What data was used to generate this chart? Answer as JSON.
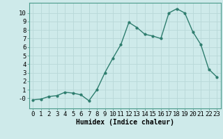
{
  "x": [
    0,
    1,
    2,
    3,
    4,
    5,
    6,
    7,
    8,
    9,
    10,
    11,
    12,
    13,
    14,
    15,
    16,
    17,
    18,
    19,
    20,
    21,
    22,
    23
  ],
  "y": [
    -0.2,
    -0.1,
    0.2,
    0.3,
    0.7,
    0.6,
    0.4,
    -0.3,
    1.0,
    3.0,
    4.7,
    6.3,
    8.9,
    8.3,
    7.5,
    7.3,
    7.0,
    10.0,
    10.5,
    10.0,
    7.8,
    6.3,
    3.4,
    2.5
  ],
  "line_color": "#2e7d6e",
  "marker": "o",
  "markersize": 2,
  "linewidth": 1.0,
  "bg_color": "#ceeaea",
  "grid_color": "#b8d8d8",
  "xlabel": "Humidex (Indice chaleur)",
  "xlim": [
    -0.5,
    23.5
  ],
  "ylim": [
    -1.2,
    11.2
  ],
  "yticks": [
    0,
    1,
    2,
    3,
    4,
    5,
    6,
    7,
    8,
    9,
    10
  ],
  "ytick_labels": [
    "-0",
    "1",
    "2",
    "3",
    "4",
    "5",
    "6",
    "7",
    "8",
    "9",
    "10"
  ],
  "xticks": [
    0,
    1,
    2,
    3,
    4,
    5,
    6,
    7,
    8,
    9,
    10,
    11,
    12,
    13,
    14,
    15,
    16,
    17,
    18,
    19,
    20,
    21,
    22,
    23
  ],
  "xlabel_fontsize": 7,
  "tick_fontsize": 6.5
}
